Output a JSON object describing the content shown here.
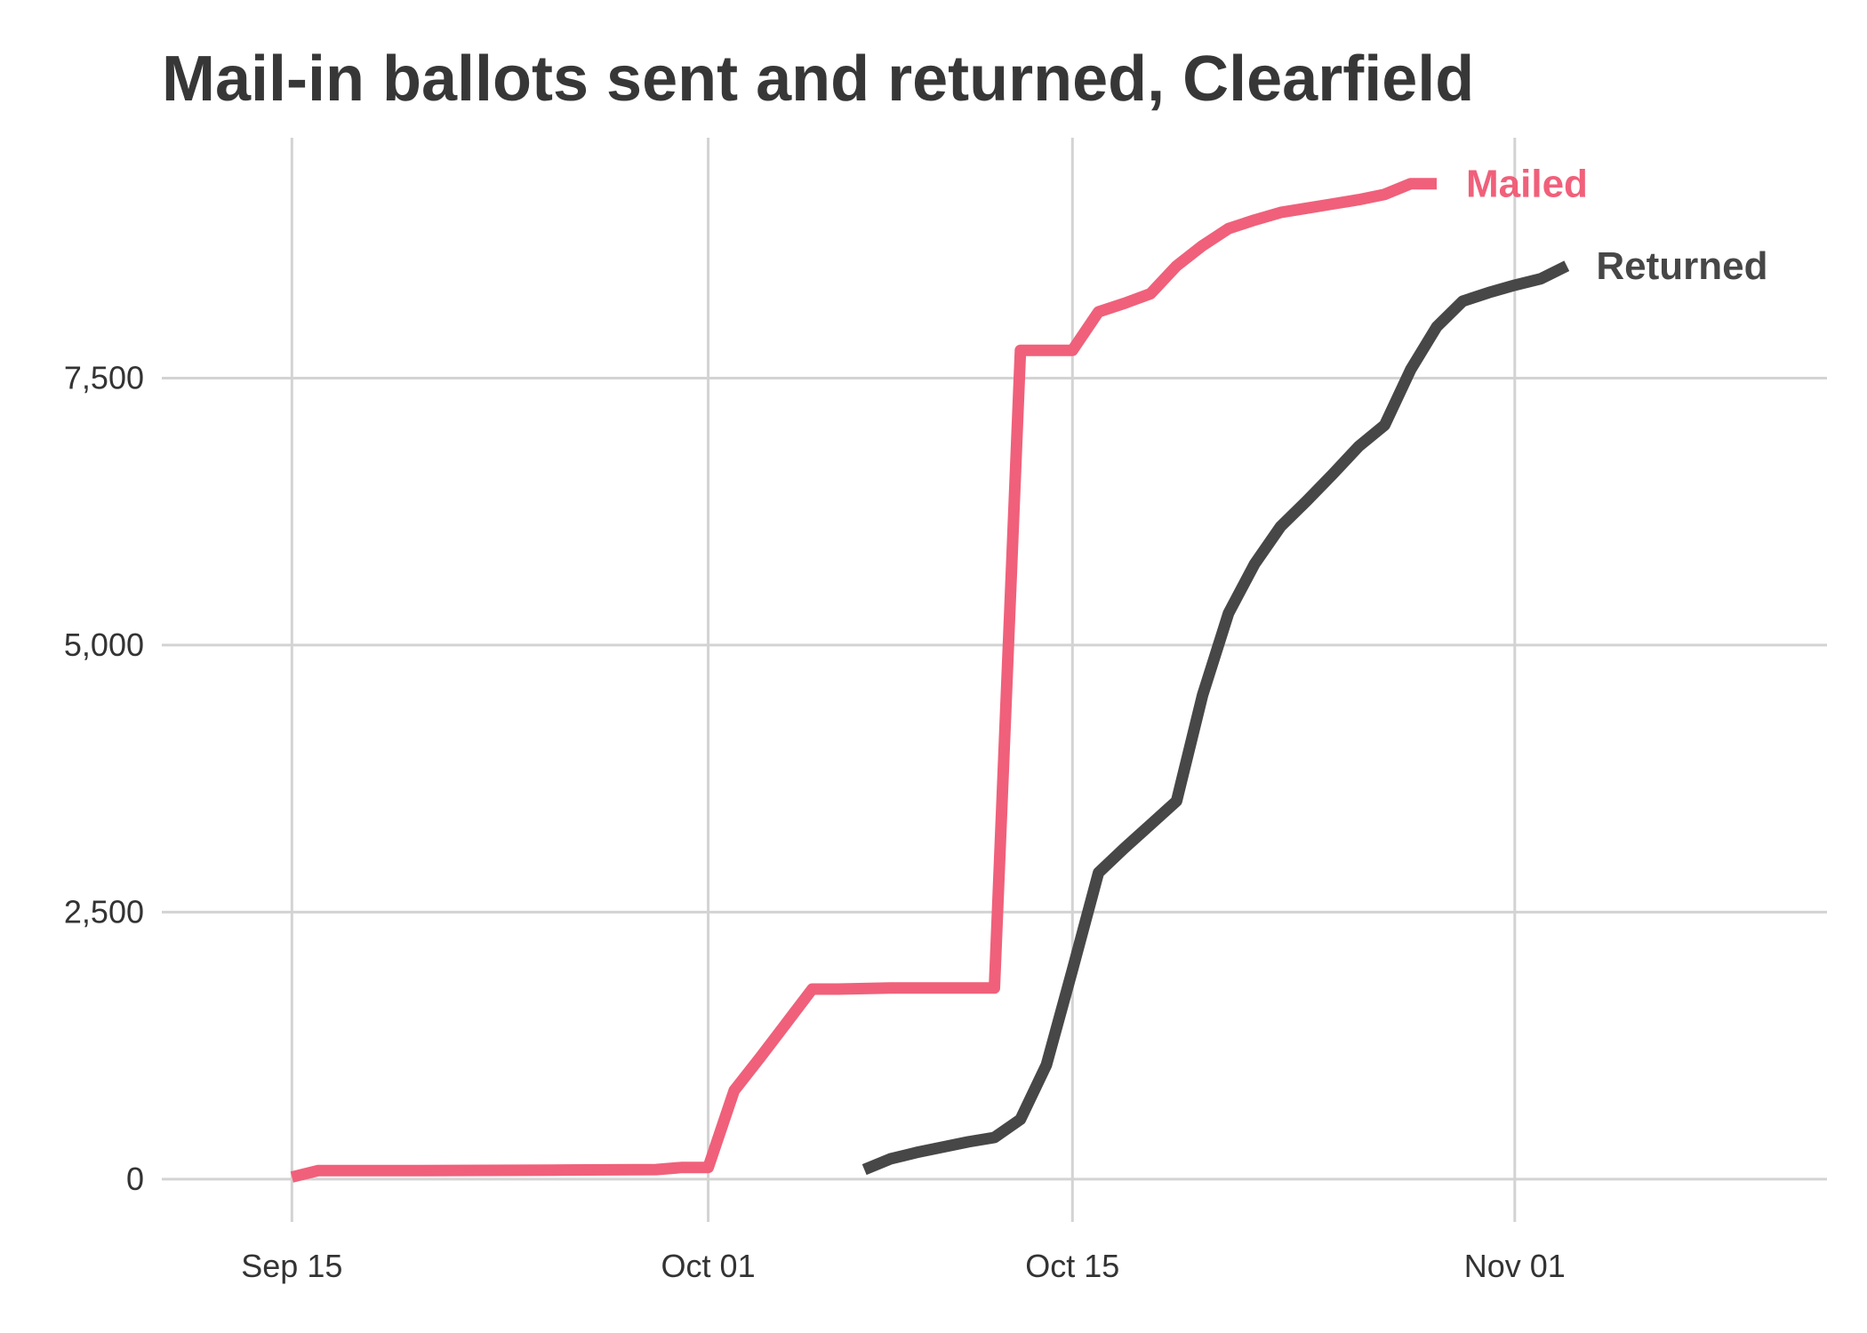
{
  "chart_data": {
    "type": "line",
    "title": "Mail-in ballots sent and returned, Clearfield",
    "xlabel": "",
    "ylabel": "",
    "x_ticks": [
      {
        "date": "2020-09-15",
        "label": "Sep 15"
      },
      {
        "date": "2020-10-01",
        "label": "Oct 01"
      },
      {
        "date": "2020-10-15",
        "label": "Oct 15"
      },
      {
        "date": "2020-11-01",
        "label": "Nov 01"
      }
    ],
    "y_ticks": [
      {
        "value": 0,
        "label": "0"
      },
      {
        "value": 2500,
        "label": "2,500"
      },
      {
        "value": 5000,
        "label": "5,000"
      },
      {
        "value": 7500,
        "label": "7,500"
      }
    ],
    "xlim": [
      "2020-09-10",
      "2020-11-13"
    ],
    "ylim": [
      -400,
      9750
    ],
    "grid": true,
    "legend": "direct labels at line ends",
    "series": [
      {
        "name": "Mailed",
        "color": "#f0607a",
        "points": [
          [
            "2020-09-15",
            20
          ],
          [
            "2020-09-16",
            80
          ],
          [
            "2020-09-20",
            80
          ],
          [
            "2020-09-25",
            85
          ],
          [
            "2020-09-29",
            90
          ],
          [
            "2020-09-30",
            110
          ],
          [
            "2020-10-01",
            110
          ],
          [
            "2020-10-02",
            830
          ],
          [
            "2020-10-03",
            1140
          ],
          [
            "2020-10-04",
            1460
          ],
          [
            "2020-10-05",
            1780
          ],
          [
            "2020-10-06",
            1780
          ],
          [
            "2020-10-08",
            1790
          ],
          [
            "2020-10-12",
            1790
          ],
          [
            "2020-10-13",
            7760
          ],
          [
            "2020-10-15",
            7760
          ],
          [
            "2020-10-16",
            8120
          ],
          [
            "2020-10-17",
            8200
          ],
          [
            "2020-10-18",
            8290
          ],
          [
            "2020-10-19",
            8550
          ],
          [
            "2020-10-20",
            8740
          ],
          [
            "2020-10-21",
            8900
          ],
          [
            "2020-10-22",
            8980
          ],
          [
            "2020-10-23",
            9050
          ],
          [
            "2020-10-24",
            9090
          ],
          [
            "2020-10-25",
            9130
          ],
          [
            "2020-10-26",
            9170
          ],
          [
            "2020-10-27",
            9220
          ],
          [
            "2020-10-28",
            9320
          ],
          [
            "2020-10-29",
            9320
          ]
        ]
      },
      {
        "name": "Returned",
        "color": "#474747",
        "points": [
          [
            "2020-10-07",
            90
          ],
          [
            "2020-10-08",
            190
          ],
          [
            "2020-10-09",
            250
          ],
          [
            "2020-10-10",
            300
          ],
          [
            "2020-10-11",
            350
          ],
          [
            "2020-10-12",
            390
          ],
          [
            "2020-10-13",
            560
          ],
          [
            "2020-10-14",
            1070
          ],
          [
            "2020-10-15",
            1960
          ],
          [
            "2020-10-16",
            2870
          ],
          [
            "2020-10-17",
            3100
          ],
          [
            "2020-10-18",
            3320
          ],
          [
            "2020-10-19",
            3540
          ],
          [
            "2020-10-20",
            4530
          ],
          [
            "2020-10-21",
            5300
          ],
          [
            "2020-10-22",
            5760
          ],
          [
            "2020-10-23",
            6110
          ],
          [
            "2020-10-24",
            6350
          ],
          [
            "2020-10-25",
            6600
          ],
          [
            "2020-10-26",
            6860
          ],
          [
            "2020-10-27",
            7060
          ],
          [
            "2020-10-28",
            7580
          ],
          [
            "2020-10-29",
            7980
          ],
          [
            "2020-10-30",
            8220
          ],
          [
            "2020-10-31",
            8300
          ],
          [
            "2020-11-01",
            8370
          ],
          [
            "2020-11-02",
            8430
          ],
          [
            "2020-11-03",
            8550
          ]
        ]
      }
    ]
  }
}
